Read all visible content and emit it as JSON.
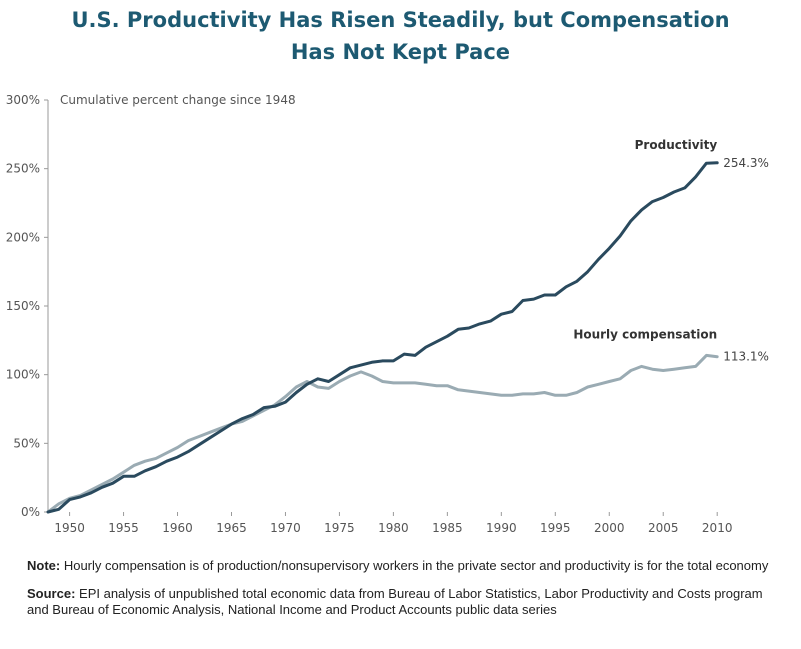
{
  "title": {
    "line1": "U.S. Productivity Has Risen Steadily, but Compensation",
    "line2": "Has Not Kept Pace"
  },
  "chart_data": {
    "type": "line",
    "ylabel": "Cumulative percent change since 1948",
    "ylim": [
      0,
      300
    ],
    "xlim": [
      1948,
      2011
    ],
    "yticks": [
      0,
      50,
      100,
      150,
      200,
      250,
      300
    ],
    "ytick_labels": [
      "0%",
      "50%",
      "100%",
      "150%",
      "200%",
      "250%",
      "300%"
    ],
    "xticks": [
      1950,
      1955,
      1960,
      1965,
      1970,
      1975,
      1980,
      1985,
      1990,
      1995,
      2000,
      2005,
      2010
    ],
    "xtick_labels": [
      "1950",
      "1955",
      "1960",
      "1965",
      "1970",
      "1975",
      "1980",
      "1985",
      "1990",
      "1995",
      "2000",
      "2005",
      "2010"
    ],
    "x": [
      1948,
      1949,
      1950,
      1951,
      1952,
      1953,
      1954,
      1955,
      1956,
      1957,
      1958,
      1959,
      1960,
      1961,
      1962,
      1963,
      1964,
      1965,
      1966,
      1967,
      1968,
      1969,
      1970,
      1971,
      1972,
      1973,
      1974,
      1975,
      1976,
      1977,
      1978,
      1979,
      1980,
      1981,
      1982,
      1983,
      1984,
      1985,
      1986,
      1987,
      1988,
      1989,
      1990,
      1991,
      1992,
      1993,
      1994,
      1995,
      1996,
      1997,
      1998,
      1999,
      2000,
      2001,
      2002,
      2003,
      2004,
      2005,
      2006,
      2007,
      2008,
      2009,
      2010
    ],
    "series": [
      {
        "name": "Productivity",
        "color": "#2a4a5e",
        "end_label": "254.3%",
        "values": [
          0,
          2,
          9,
          11,
          14,
          18,
          21,
          26,
          26,
          30,
          33,
          37,
          40,
          44,
          49,
          54,
          59,
          64,
          68,
          71,
          76,
          77,
          80,
          87,
          93,
          97,
          95,
          100,
          105,
          107,
          109,
          110,
          110,
          115,
          114,
          120,
          124,
          128,
          133,
          134,
          137,
          139,
          144,
          146,
          154,
          155,
          158,
          158,
          164,
          168,
          175,
          184,
          192,
          201,
          212,
          220,
          226,
          229,
          233,
          236,
          244,
          254,
          254.3
        ]
      },
      {
        "name": "Hourly compensation",
        "color": "#9aabb3",
        "end_label": "113.1%",
        "values": [
          0,
          6,
          10,
          12,
          16,
          20,
          24,
          29,
          34,
          37,
          39,
          43,
          47,
          52,
          55,
          58,
          61,
          64,
          66,
          70,
          74,
          78,
          84,
          91,
          95,
          91,
          90,
          95,
          99,
          102,
          99,
          95,
          94,
          94,
          94,
          93,
          92,
          92,
          89,
          88,
          87,
          86,
          85,
          85,
          86,
          86,
          87,
          85,
          85,
          87,
          91,
          93,
          95,
          97,
          103,
          106,
          104,
          103,
          104,
          105,
          106,
          114,
          113.1
        ]
      }
    ]
  },
  "notes": {
    "note_label": "Note:",
    "note_text": " Hourly compensation is of production/nonsupervisory workers in the private sector and productivity is for the total economy",
    "source_label": "Source:",
    "source_text": " EPI analysis of unpublished total economic data from Bureau of Labor Statistics, Labor Productivity and Costs program and Bureau of Economic Analysis, National Income and Product Accounts public data series"
  }
}
